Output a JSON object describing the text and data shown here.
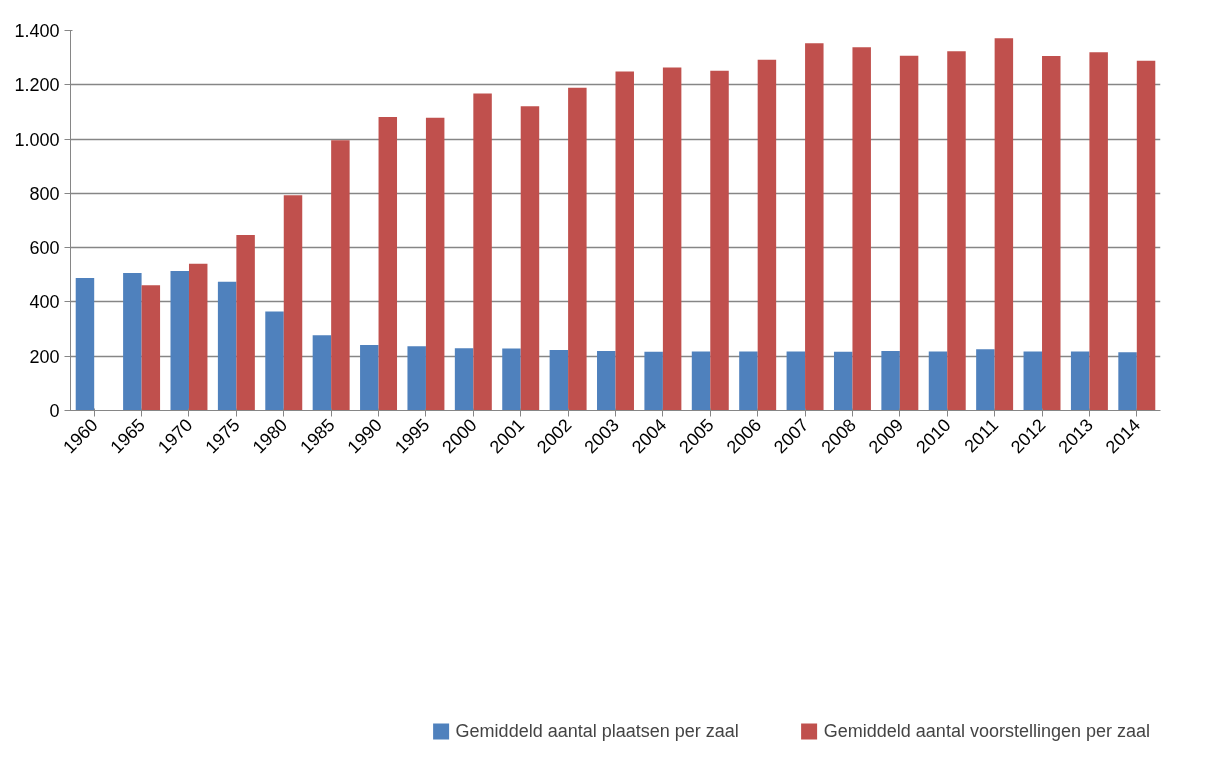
{
  "chart_data": {
    "type": "bar",
    "categories": [
      "1960",
      "1965",
      "1970",
      "1975",
      "1980",
      "1985",
      "1990",
      "1995",
      "2000",
      "2001",
      "2002",
      "2003",
      "2004",
      "2005",
      "2006",
      "2007",
      "2008",
      "2009",
      "2010",
      "2011",
      "2012",
      "2013",
      "2014"
    ],
    "series": [
      {
        "name": "Gemiddeld aantal plaatsen per zaal",
        "color": "#4f81bd",
        "values": [
          488,
          507,
          514,
          474,
          365,
          277,
          241,
          237,
          229,
          228,
          223,
          219,
          216,
          217,
          217,
          217,
          216,
          219,
          217,
          226,
          217,
          217,
          215
        ]
      },
      {
        "name": "Gemiddeld aantal voorstellingen per zaal",
        "color": "#c0504d",
        "values": [
          null,
          461,
          541,
          647,
          793,
          996,
          1081,
          1079,
          1168,
          1121,
          1189,
          1249,
          1264,
          1252,
          1292,
          1353,
          1338,
          1307,
          1324,
          1371,
          1306,
          1320,
          1289
        ]
      }
    ],
    "ylim": [
      0,
      1400
    ],
    "yticks": [
      0,
      200,
      400,
      600,
      800,
      {
        "value": 1000,
        "label": "1.000"
      },
      {
        "value": 1200,
        "label": "1.200"
      },
      {
        "value": 1400,
        "label": "1.400"
      }
    ],
    "grid": "y",
    "legend": "bottom"
  }
}
